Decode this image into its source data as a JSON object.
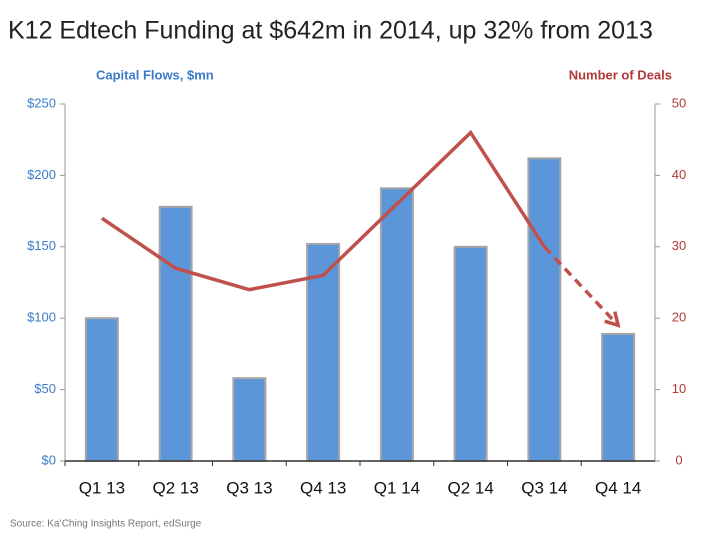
{
  "chart_data": {
    "type": "bar_line",
    "title": "K12 Edtech Funding at $642m in 2014, up 32% from 2013",
    "y_label": "Capital Flows, $mn",
    "y2_label": "Number of Deals",
    "source": "Source: Ka’Ching Insights Report, edSurge",
    "categories": [
      "Q1 13",
      "Q2 13",
      "Q3 13",
      "Q4 13",
      "Q1 14",
      "Q2 14",
      "Q3 14",
      "Q4 14"
    ],
    "series": [
      {
        "name": "Capital Flows, $mn",
        "type": "bar",
        "color": "#5b96d8",
        "values": [
          100,
          178,
          58,
          152,
          191,
          150,
          212,
          89
        ]
      },
      {
        "name": "Number of Deals",
        "type": "line",
        "axis": "y2",
        "color": "#c0504d",
        "dash_last_segment": true,
        "values": [
          34,
          27,
          24,
          26,
          36,
          46,
          30,
          19
        ]
      }
    ],
    "ylim": [
      0,
      250
    ],
    "yticks": [
      {
        "value": 0,
        "label": "$0"
      },
      {
        "value": 50,
        "label": "$50"
      },
      {
        "value": 100,
        "label": "$100"
      },
      {
        "value": 150,
        "label": "$150"
      },
      {
        "value": 200,
        "label": "$200"
      },
      {
        "value": 250,
        "label": "$250"
      }
    ],
    "y2lim": [
      0,
      50
    ],
    "y2ticks": [
      0,
      10,
      20,
      30,
      40,
      50
    ]
  }
}
